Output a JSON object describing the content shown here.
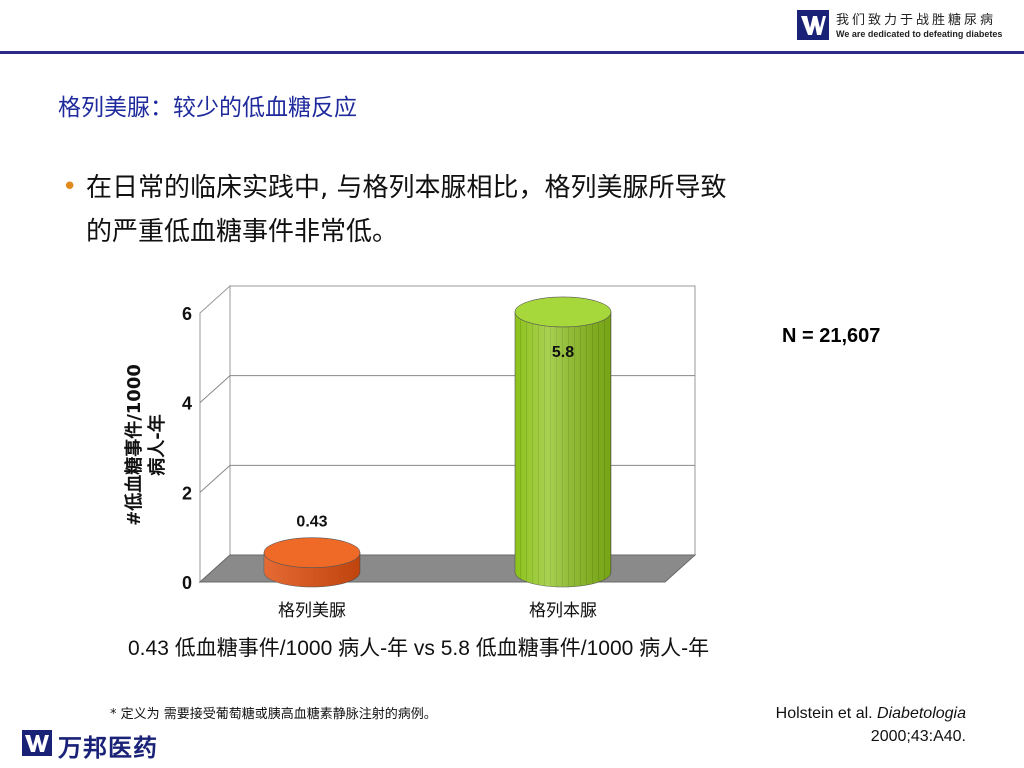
{
  "header": {
    "slogan_cn": "我们致力于战胜糖尿病",
    "slogan_en": "We are dedicated to defeating diabetes"
  },
  "page_title": "格列美脲：较少的低血糖反应",
  "bullet": {
    "text_line1": "在日常的临床实践中, 与格列本脲相比，格列美脲所导致",
    "text_line2": "的严重低血糖事件非常低。"
  },
  "chart_data": {
    "type": "bar",
    "categories": [
      "格列美脲",
      "格列本脲"
    ],
    "values": [
      0.43,
      5.8
    ],
    "value_labels": [
      "0.43",
      "5.8"
    ],
    "ylabel_line1": "#低血糖事件/1000",
    "ylabel_line2": "病人-年",
    "ylim": [
      0,
      6
    ],
    "yticks": [
      0,
      2,
      4,
      6
    ],
    "grid": true,
    "colors": [
      "#e0500f",
      "#8cc21a"
    ]
  },
  "n_label": "N = 21,607",
  "summary": "0.43 低血糖事件/1000 病人-年 vs 5.8 低血糖事件/1000 病人-年",
  "footnote": "* 定义为 需要接受葡萄糖或胰高血糖素静脉注射的病例。",
  "citation": {
    "authors": "Holstein et al. ",
    "journal": "Diabetologia",
    "ref": "2000;43:A40."
  },
  "footer": {
    "company_name": "万邦医药"
  },
  "colors": {
    "title_blue": "#1f2b9c",
    "brand_navy": "#1a2278",
    "bullet_orange": "#e08a1e"
  }
}
